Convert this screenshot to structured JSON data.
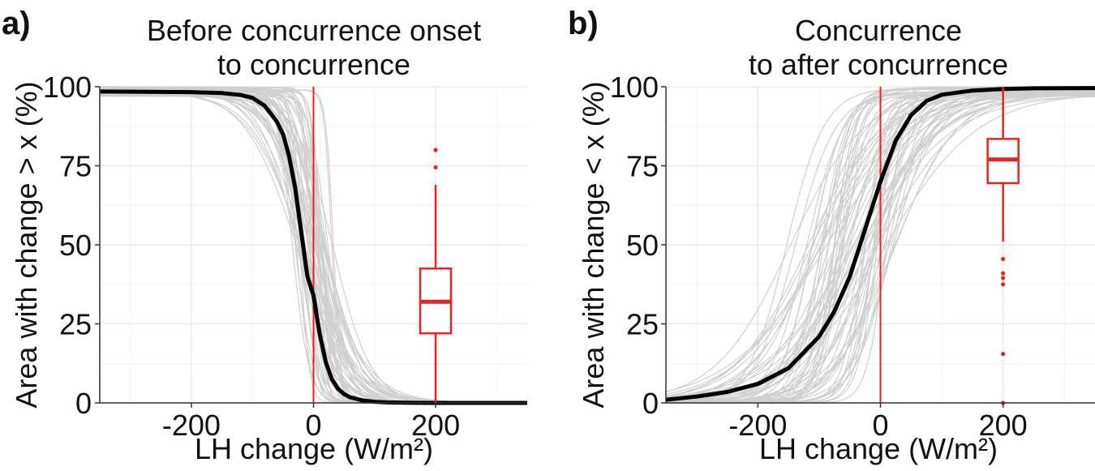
{
  "colors": {
    "gray": "#cfcfcf",
    "mean": "#000000",
    "accent": "#e8231f",
    "grid_major": "#e6e6e6",
    "grid_minor": "#f2f2f2",
    "axis": "#333333"
  },
  "chart_data": [
    {
      "type": "line",
      "panel_label": "a)",
      "title": [
        "Before concurrence onset",
        "to concurrence"
      ],
      "xlabel": "LH change (W/m²)",
      "ylabel": "Area with change > x (%)",
      "xlim": [
        -350,
        350
      ],
      "ylim": [
        0,
        100
      ],
      "xticks": [
        -200,
        0,
        200
      ],
      "xtick_labels": [
        "-200",
        "0",
        "200"
      ],
      "yticks": [
        0,
        25,
        50,
        75,
        100
      ],
      "ytick_labels": [
        "0",
        "25",
        "50",
        "75",
        "100"
      ],
      "grid": true,
      "vline_x": 0,
      "mean_curve": {
        "x": [
          -350,
          -200,
          -150,
          -120,
          -100,
          -80,
          -60,
          -50,
          -40,
          -30,
          -20,
          -10,
          0,
          10,
          20,
          30,
          40,
          50,
          60,
          80,
          100,
          120,
          150,
          200,
          250,
          350
        ],
        "y": [
          98.5,
          98.3,
          98,
          97.4,
          96.5,
          94,
          89,
          85,
          78,
          68,
          54,
          40,
          34,
          22,
          13,
          7.5,
          4.5,
          2.8,
          1.8,
          0.8,
          0.35,
          0.15,
          0.05,
          0,
          0,
          0
        ]
      },
      "member_curves": {
        "count": 60,
        "center_spread": [
          -45,
          45
        ],
        "width_spread": [
          6,
          45
        ]
      },
      "boxplot": {
        "x": 200,
        "whisker_low": 0,
        "q1": 22,
        "median": 32,
        "q3": 42.5,
        "whisker_high": 69,
        "outliers": [
          74.5,
          80
        ]
      }
    },
    {
      "type": "line",
      "panel_label": "b)",
      "title": [
        "Concurrence",
        "to after concurrence"
      ],
      "xlabel": "LH change (W/m²)",
      "ylabel": "Area with change < x (%)",
      "xlim": [
        -350,
        350
      ],
      "ylim": [
        0,
        100
      ],
      "xticks": [
        -200,
        0,
        200
      ],
      "xtick_labels": [
        "-200",
        "0",
        "200"
      ],
      "yticks": [
        0,
        25,
        50,
        75,
        100
      ],
      "ytick_labels": [
        "0",
        "25",
        "50",
        "75",
        "100"
      ],
      "grid": true,
      "vline_x": 0,
      "mean_curve": {
        "x": [
          -350,
          -300,
          -250,
          -200,
          -150,
          -100,
          -75,
          -50,
          -25,
          0,
          25,
          50,
          75,
          100,
          150,
          200,
          250,
          350
        ],
        "y": [
          1,
          2,
          3.5,
          6,
          11,
          21,
          29,
          40,
          55,
          70,
          83,
          91,
          95.5,
          97.5,
          98.8,
          99.3,
          99.5,
          99.6
        ]
      },
      "member_curves": {
        "count": 70,
        "center_spread": [
          -170,
          30
        ],
        "width_spread": [
          15,
          80
        ]
      },
      "boxplot": {
        "x": 200,
        "whisker_low": 51,
        "q1": 69.5,
        "median": 77,
        "q3": 83.5,
        "whisker_high": 100,
        "outliers": [
          45.5,
          41,
          39.5,
          37.5,
          15.5,
          0
        ]
      }
    }
  ]
}
